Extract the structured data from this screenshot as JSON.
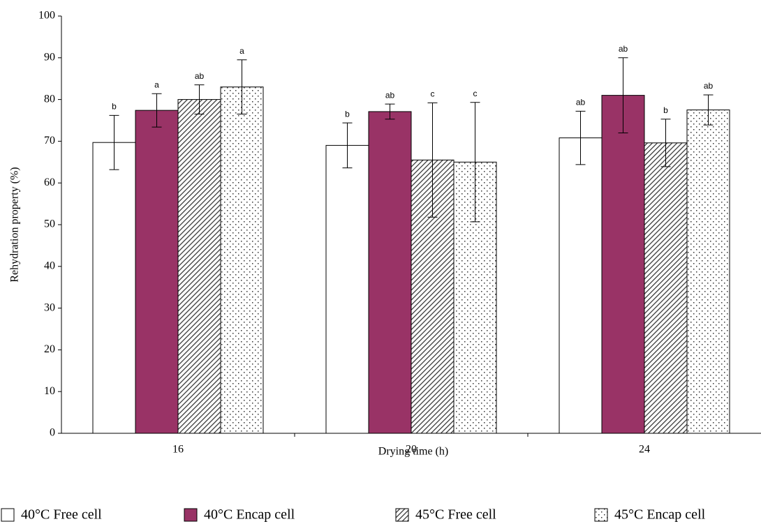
{
  "chart_data": {
    "type": "bar",
    "x_label": "Drying time (h)",
    "y_label": "Rehydration property (%)",
    "categories": [
      "16",
      "20",
      "24"
    ],
    "ylim": [
      0,
      100
    ],
    "yticks": [
      0,
      10,
      20,
      30,
      40,
      50,
      60,
      70,
      80,
      90,
      100
    ],
    "series": [
      {
        "name": "40°C Free cell",
        "color": "#ffffff",
        "values": [
          69.7,
          69,
          70.8
        ],
        "errors": [
          6.5,
          5.4,
          6.4
        ],
        "letters": [
          "b",
          "b",
          "ab"
        ]
      },
      {
        "name": "40°C Encap cell",
        "color": "#993366",
        "values": [
          77.4,
          77.1,
          81
        ],
        "errors": [
          4,
          1.8,
          9
        ],
        "letters": [
          "a",
          "ab",
          "ab"
        ]
      },
      {
        "name": "45°C Free cell",
        "color": "#ffffff",
        "pattern": "hatch",
        "values": [
          80,
          65.5,
          69.6
        ],
        "errors": [
          3.5,
          13.7,
          5.7
        ],
        "letters": [
          "ab",
          "c",
          "b"
        ]
      },
      {
        "name": "45°C Encap cell",
        "color": "#ffffff",
        "pattern": "dots",
        "values": [
          83,
          65,
          77.5
        ],
        "errors": [
          6.5,
          14.3,
          3.6
        ],
        "letters": [
          "a",
          "c",
          "ab"
        ]
      }
    ]
  }
}
